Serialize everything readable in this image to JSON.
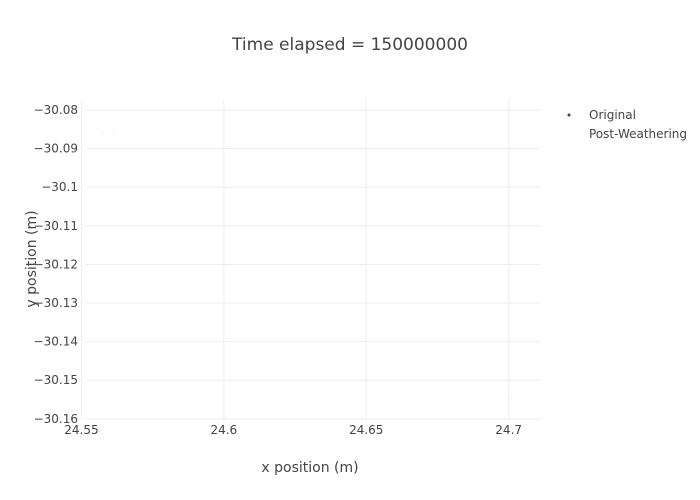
{
  "chart_data": {
    "type": "scatter",
    "title": "Time elapsed = 150000000",
    "xlabel": "x position (m)",
    "ylabel": "y position (m)",
    "xlim": [
      24.5495,
      24.711
    ],
    "ylim": [
      -30.1603,
      -30.0774
    ],
    "x_ticks": [
      24.55,
      24.6,
      24.65,
      24.7
    ],
    "x_tick_labels": [
      "24.55",
      "24.6",
      "24.65",
      "24.7"
    ],
    "y_ticks": [
      -30.08,
      -30.09,
      -30.1,
      -30.11,
      -30.12,
      -30.13,
      -30.14,
      -30.15,
      -30.16
    ],
    "y_tick_labels": [
      "−30.08",
      "−30.09",
      "−30.1",
      "−30.11",
      "−30.12",
      "−30.13",
      "−30.14",
      "−30.15",
      "−30.16"
    ],
    "grid": true,
    "legend_position": "top-right",
    "series": [
      {
        "name": "Original",
        "color": "#f4f4f4",
        "points": [
          [
            24.5575,
            -30.086
          ],
          [
            24.5615,
            -30.0858
          ]
        ]
      },
      {
        "name": "Post-Weathering",
        "color": "#f4f4f4",
        "points": [
          [
            24.701,
            -30.1548
          ]
        ]
      }
    ],
    "legend_lines": [
      "Original",
      "Post-Weathering"
    ]
  }
}
